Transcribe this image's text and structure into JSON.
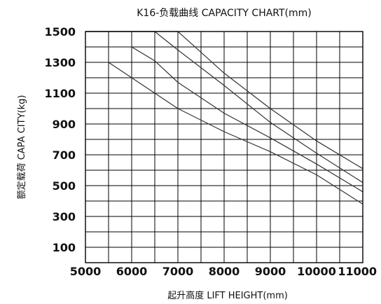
{
  "chart_data": {
    "type": "line",
    "title": "K16-负载曲线 CAPACITY  CHART(mm)",
    "xlabel": "起升高度  LIFT  HEIGHT(mm)",
    "ylabel": "额定载荷   CAPA  CITY(kg)",
    "xlim": [
      5000,
      11000
    ],
    "ylim": [
      0,
      1500
    ],
    "x_ticks": [
      5000,
      6000,
      7000,
      8000,
      9000,
      10000,
      11000
    ],
    "x_tick_labels": [
      "5000",
      "6000",
      "7000",
      "8000",
      "9000",
      "10000",
      "11000"
    ],
    "y_ticks": [
      100,
      300,
      500,
      700,
      900,
      1100,
      1300,
      1500
    ],
    "y_tick_labels": [
      "100",
      "300",
      "500",
      "700",
      "900",
      "1100",
      "1300",
      "1500"
    ],
    "grid": true,
    "series": [
      {
        "x": [
          5000,
          5500,
          6000,
          7000,
          8000,
          9000,
          10000,
          11000
        ],
        "y": [
          1300,
          1300,
          1200,
          1000,
          850,
          720,
          570,
          380
        ]
      },
      {
        "x": [
          5000,
          6000,
          6500,
          7000,
          8000,
          9000,
          10000,
          11000
        ],
        "y": [
          1400,
          1400,
          1310,
          1170,
          970,
          810,
          640,
          460
        ]
      },
      {
        "x": [
          5000,
          6500,
          7000,
          8000,
          9000,
          10000,
          11000
        ],
        "y": [
          1500,
          1500,
          1380,
          1150,
          910,
          710,
          520
        ]
      },
      {
        "x": [
          5000,
          7000,
          8000,
          9000,
          10000,
          11000
        ],
        "y": [
          1500,
          1500,
          1230,
          1000,
          790,
          610
        ]
      }
    ]
  }
}
